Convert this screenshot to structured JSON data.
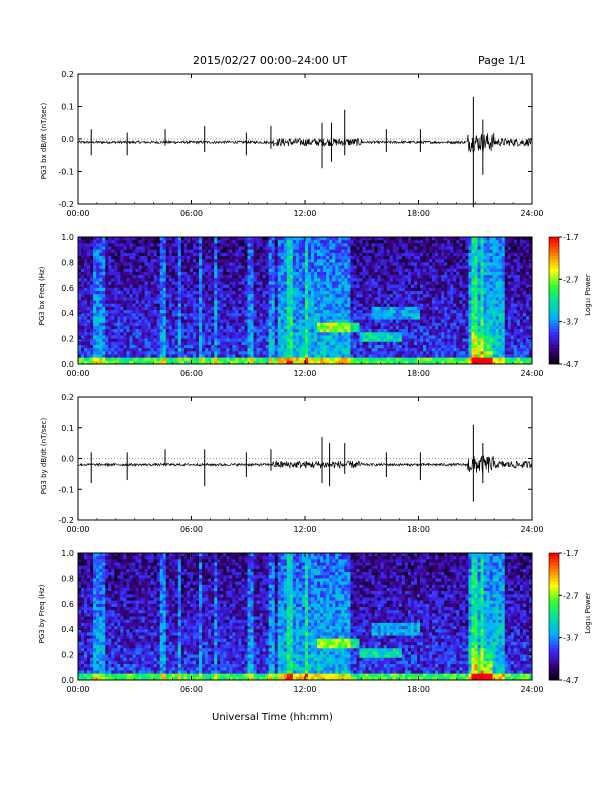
{
  "header": {
    "title": "2015/02/27  00:00–24:00 UT",
    "page": "Page 1/1"
  },
  "xlabel": "Universal Time (hh:mm)",
  "colors": {
    "line": "#000000",
    "bg_low": "#1a0a3a",
    "colorbar": [
      "#000000",
      "#3b0080",
      "#3a2cff",
      "#00b0ff",
      "#00e0a0",
      "#30ff30",
      "#ffff00",
      "#ff8000",
      "#ff0000"
    ]
  },
  "chart_data": [
    {
      "type": "line",
      "id": "bx-line",
      "ylabel": "PG3 bx dB/dt (nT/sec)",
      "ylim": [
        -0.2,
        0.2
      ],
      "yticks": [
        "0.2",
        "0.1",
        "0.0",
        "-0.1",
        "-0.2"
      ],
      "xlim": [
        0,
        24
      ],
      "xticks": [
        "00:00",
        "06:00",
        "12:00",
        "18:00",
        "24:00"
      ],
      "baseline": -0.01,
      "bursts": [
        {
          "x": 0.7,
          "ymin": -0.05,
          "ymax": 0.03
        },
        {
          "x": 2.6,
          "ymin": -0.05,
          "ymax": 0.02
        },
        {
          "x": 4.6,
          "ymin": -0.02,
          "ymax": 0.03
        },
        {
          "x": 6.7,
          "ymin": -0.04,
          "ymax": 0.04
        },
        {
          "x": 8.9,
          "ymin": -0.05,
          "ymax": 0.02
        },
        {
          "x": 10.2,
          "ymin": -0.03,
          "ymax": 0.04
        },
        {
          "x": 12.9,
          "ymin": -0.09,
          "ymax": 0.05
        },
        {
          "x": 13.4,
          "ymin": -0.07,
          "ymax": 0.05
        },
        {
          "x": 14.1,
          "ymin": -0.05,
          "ymax": 0.09
        },
        {
          "x": 16.3,
          "ymin": -0.04,
          "ymax": 0.03
        },
        {
          "x": 18.1,
          "ymin": -0.04,
          "ymax": 0.03
        },
        {
          "x": 20.9,
          "ymin": -0.21,
          "ymax": 0.13
        },
        {
          "x": 21.4,
          "ymin": -0.11,
          "ymax": 0.06
        }
      ],
      "active_windows": [
        [
          10.3,
          15.0
        ],
        [
          20.6,
          24.0
        ]
      ]
    },
    {
      "type": "heatmap",
      "id": "bx-spec",
      "ylabel": "PG3 bx Freq (Hz)",
      "ylim": [
        0,
        1.0
      ],
      "yticks": [
        "1.0",
        "0.8",
        "0.6",
        "0.4",
        "0.2",
        "0.0"
      ],
      "xticks": [
        "00:00",
        "06:00",
        "12:00",
        "18:00",
        "24:00"
      ],
      "colorbar": {
        "label": "Log₁₀ Power",
        "ticks": [
          "-1.7",
          "-2.7",
          "-3.7",
          "-4.7"
        ],
        "range": [
          -4.7,
          -1.7
        ]
      }
    },
    {
      "type": "line",
      "id": "by-line",
      "ylabel": "PG3 by dB/dt (nT/sec)",
      "ylim": [
        -0.2,
        0.2
      ],
      "yticks": [
        "0.2",
        "0.1",
        "0.0",
        "-0.1",
        "-0.2"
      ],
      "xlim": [
        0,
        24
      ],
      "xticks": [
        "00:00",
        "06:00",
        "12:00",
        "18:00",
        "24:00"
      ],
      "baseline": -0.02,
      "bursts": [
        {
          "x": 0.7,
          "ymin": -0.08,
          "ymax": 0.02
        },
        {
          "x": 2.6,
          "ymin": -0.07,
          "ymax": 0.02
        },
        {
          "x": 4.6,
          "ymin": -0.02,
          "ymax": 0.03
        },
        {
          "x": 6.7,
          "ymin": -0.09,
          "ymax": 0.03
        },
        {
          "x": 8.9,
          "ymin": -0.06,
          "ymax": 0.02
        },
        {
          "x": 10.2,
          "ymin": -0.04,
          "ymax": 0.03
        },
        {
          "x": 12.9,
          "ymin": -0.08,
          "ymax": 0.07
        },
        {
          "x": 13.3,
          "ymin": -0.09,
          "ymax": 0.05
        },
        {
          "x": 14.1,
          "ymin": -0.05,
          "ymax": 0.05
        },
        {
          "x": 16.3,
          "ymin": -0.06,
          "ymax": 0.02
        },
        {
          "x": 18.1,
          "ymin": -0.07,
          "ymax": 0.02
        },
        {
          "x": 20.9,
          "ymin": -0.14,
          "ymax": 0.11
        },
        {
          "x": 21.4,
          "ymin": -0.08,
          "ymax": 0.05
        }
      ],
      "active_windows": [
        [
          10.3,
          15.0
        ],
        [
          20.6,
          24.0
        ]
      ]
    },
    {
      "type": "heatmap",
      "id": "by-spec",
      "ylabel": "PG3 by Freq (Hz)",
      "ylim": [
        0,
        1.0
      ],
      "yticks": [
        "1.0",
        "0.8",
        "0.6",
        "0.4",
        "0.2",
        "0.0"
      ],
      "xticks": [
        "00:00",
        "06:00",
        "12:00",
        "18:00",
        "24:00"
      ],
      "colorbar": {
        "label": "Log₁₀ Power",
        "ticks": [
          "-1.7",
          "-2.7",
          "-3.7",
          "-4.7"
        ],
        "range": [
          -4.7,
          -1.7
        ]
      }
    }
  ]
}
